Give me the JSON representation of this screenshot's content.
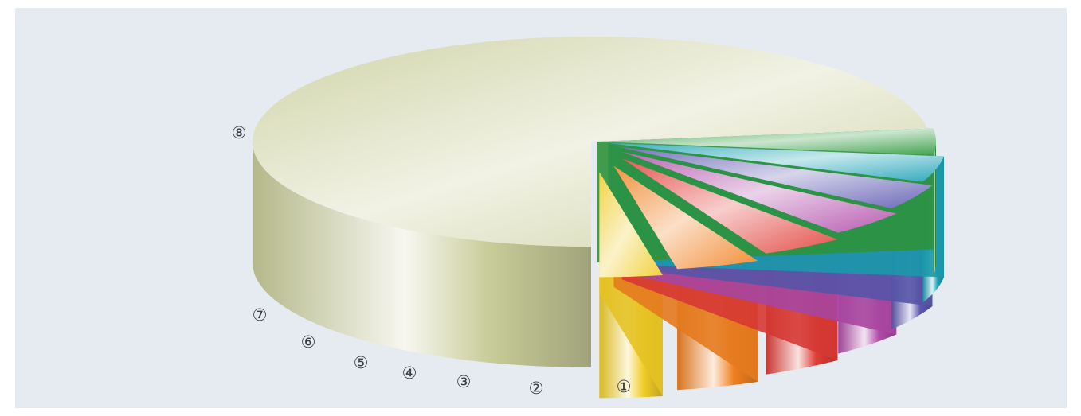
{
  "chart_data": {
    "type": "pie",
    "style": "3d-exploded",
    "labels": [
      "①",
      "②",
      "③",
      "④",
      "⑤",
      "⑥",
      "⑦",
      "⑧"
    ],
    "values": [
      73,
      4,
      4,
      4,
      4,
      4,
      4,
      3
    ],
    "colors": [
      "#c8cc98",
      "#2f9a3e",
      "#1aa1b4",
      "#5c58b0",
      "#b04aa8",
      "#e03c36",
      "#f08020",
      "#f0cc26"
    ],
    "title": "",
    "legend": "none"
  }
}
